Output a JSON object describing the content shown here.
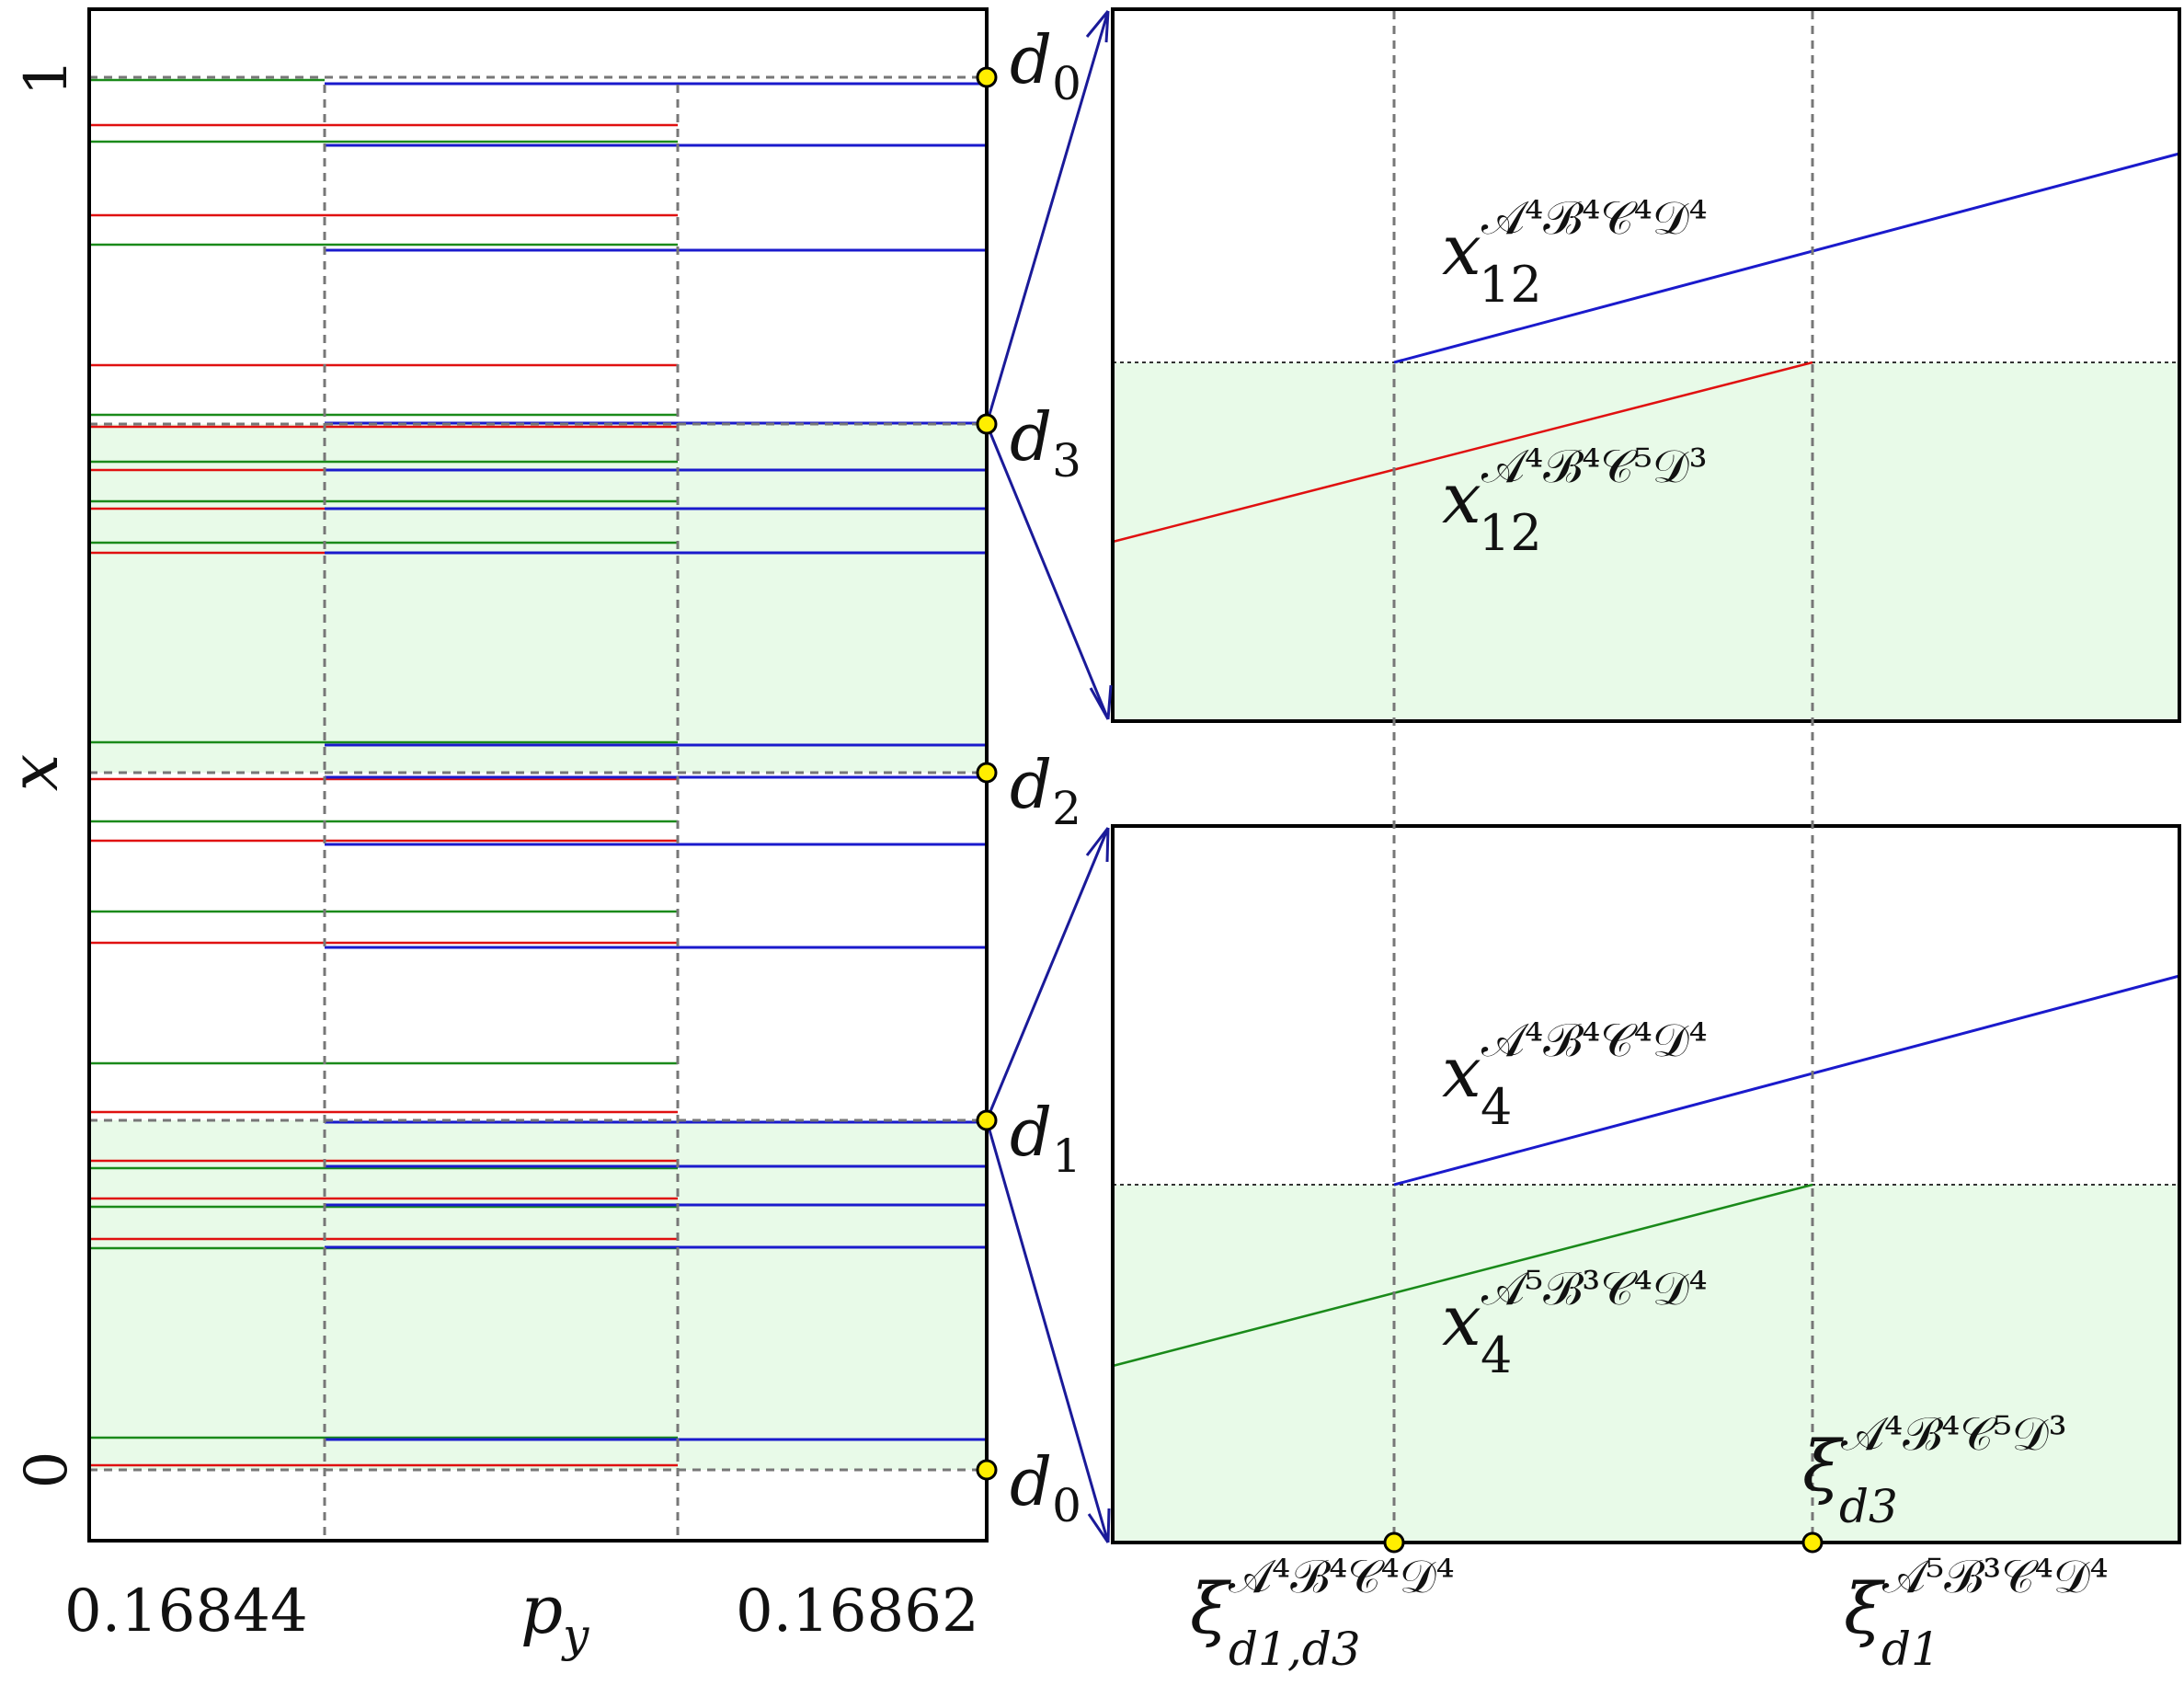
{
  "left_panel": {
    "y_axis_label": "x",
    "x_axis_label_base": "p",
    "x_axis_label_sub": "y",
    "x_tick_left": "0.16844",
    "x_tick_right": "0.16862",
    "y_tick_top": "1",
    "y_tick_bottom": "0"
  },
  "markers": {
    "d0_top": {
      "base": "d",
      "sub": "0"
    },
    "d3": {
      "base": "d",
      "sub": "3"
    },
    "d2": {
      "base": "d",
      "sub": "2"
    },
    "d1": {
      "base": "d",
      "sub": "1"
    },
    "d0_bottom": {
      "base": "d",
      "sub": "0"
    }
  },
  "top_zoom": {
    "blue_label_base": "x",
    "blue_label_sub": "12",
    "blue_label_sup": "𝒜⁴ℬ⁴𝒞⁴𝒟⁴",
    "red_label_base": "x",
    "red_label_sub": "12",
    "red_label_sup": "𝒜⁴ℬ⁴𝒞⁵𝒟³"
  },
  "bottom_zoom": {
    "blue_label_base": "x",
    "blue_label_sub": "4",
    "blue_label_sup": "𝒜⁴ℬ⁴𝒞⁴𝒟⁴",
    "green_label_base": "x",
    "green_label_sub": "4",
    "green_label_sup": "𝒜⁵ℬ³𝒞⁴𝒟⁴",
    "xi_d3_base": "ξ",
    "xi_d3_sub": "d3",
    "xi_d3_sup": "𝒜⁴ℬ⁴𝒞⁵𝒟³"
  },
  "bottom_axis": {
    "xi_d1d3_base": "ξ",
    "xi_d1d3_sub": "d1,d3",
    "xi_d1d3_sup": "𝒜⁴ℬ⁴𝒞⁴𝒟⁴",
    "xi_d1_base": "ξ",
    "xi_d1_sub": "d1",
    "xi_d1_sup": "𝒜⁵ℬ³𝒞⁴𝒟⁴"
  },
  "colors": {
    "blue": "#1a1acc",
    "red": "#e01010",
    "green": "#1a8a1a",
    "shade": "#e8fae8",
    "marker": "#ffee00"
  }
}
